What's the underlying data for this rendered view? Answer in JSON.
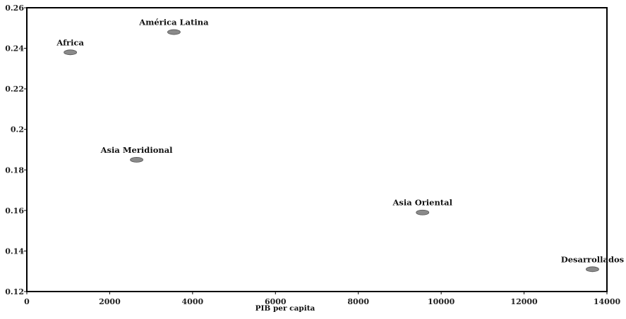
{
  "chart_data": {
    "type": "scatter",
    "title": "",
    "xlabel": "PIB per capita",
    "ylabel": "",
    "xlim": [
      0,
      14000
    ],
    "ylim": [
      0.12,
      0.26
    ],
    "x_ticks": [
      0,
      2000,
      4000,
      6000,
      8000,
      10000,
      12000,
      14000
    ],
    "x_tick_labels": [
      "0",
      "2000",
      "4000",
      "6000",
      "8000",
      "10000",
      "12000",
      "14000"
    ],
    "y_ticks": [
      0.12,
      0.14,
      0.16,
      0.18,
      0.2,
      0.22,
      0.24,
      0.26
    ],
    "y_tick_labels": [
      "0.12",
      "0.14",
      "0.16",
      "0.18",
      "0.2",
      "0.22",
      "0.24",
      "0.26"
    ],
    "grid": false,
    "legend": "none",
    "marker_color": "#8a8a8a",
    "points": [
      {
        "label": "Africa",
        "x": 1050,
        "y": 0.238
      },
      {
        "label": "América Latina",
        "x": 3550,
        "y": 0.248
      },
      {
        "label": "Asia Meridional",
        "x": 2650,
        "y": 0.185
      },
      {
        "label": "Asia Oriental",
        "x": 9550,
        "y": 0.159
      },
      {
        "label": "Desarrollados",
        "x": 13650,
        "y": 0.131
      }
    ]
  }
}
